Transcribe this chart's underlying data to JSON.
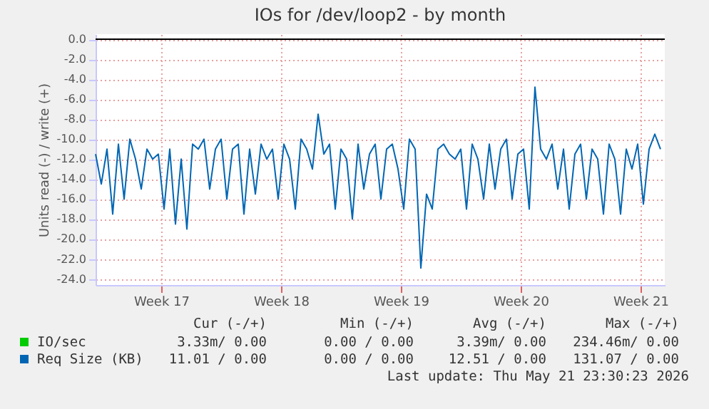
{
  "chart_data": {
    "type": "line",
    "title": "IOs for /dev/loop2 - by month",
    "ylabel": "Units read (-) / write (+)",
    "x": [
      "2026-04-19T16:00",
      "2026-04-20T00:00",
      "2026-04-20T08:00",
      "2026-04-20T16:00",
      "2026-04-21T00:00",
      "2026-04-21T08:00",
      "2026-04-21T16:00",
      "2026-04-22T00:00",
      "2026-04-22T08:00",
      "2026-04-22T16:00",
      "2026-04-23T00:00",
      "2026-04-23T08:00",
      "2026-04-23T16:00",
      "2026-04-24T00:00",
      "2026-04-24T08:00",
      "2026-04-24T16:00",
      "2026-04-25T00:00",
      "2026-04-25T08:00",
      "2026-04-25T16:00",
      "2026-04-26T00:00",
      "2026-04-26T08:00",
      "2026-04-26T16:00",
      "2026-04-27T00:00",
      "2026-04-27T08:00",
      "2026-04-27T16:00",
      "2026-04-28T00:00",
      "2026-04-28T08:00",
      "2026-04-28T16:00",
      "2026-04-29T00:00",
      "2026-04-29T08:00",
      "2026-04-29T16:00",
      "2026-04-30T00:00",
      "2026-04-30T08:00",
      "2026-04-30T16:00",
      "2026-05-01T00:00",
      "2026-05-01T08:00",
      "2026-05-01T16:00",
      "2026-05-02T00:00",
      "2026-05-02T08:00",
      "2026-05-02T16:00",
      "2026-05-03T00:00",
      "2026-05-03T08:00",
      "2026-05-03T16:00",
      "2026-05-04T00:00",
      "2026-05-04T08:00",
      "2026-05-04T16:00",
      "2026-05-05T00:00",
      "2026-05-05T08:00",
      "2026-05-05T16:00",
      "2026-05-06T00:00",
      "2026-05-06T08:00",
      "2026-05-06T16:00",
      "2026-05-07T00:00",
      "2026-05-07T08:00",
      "2026-05-07T16:00",
      "2026-05-08T00:00",
      "2026-05-08T08:00",
      "2026-05-08T16:00",
      "2026-05-09T00:00",
      "2026-05-09T08:00",
      "2026-05-09T16:00",
      "2026-05-10T00:00",
      "2026-05-10T08:00",
      "2026-05-10T16:00",
      "2026-05-11T00:00",
      "2026-05-11T08:00",
      "2026-05-11T16:00",
      "2026-05-12T00:00",
      "2026-05-12T08:00",
      "2026-05-12T16:00",
      "2026-05-13T00:00",
      "2026-05-13T08:00",
      "2026-05-13T16:00",
      "2026-05-14T00:00",
      "2026-05-14T08:00",
      "2026-05-14T16:00",
      "2026-05-15T00:00",
      "2026-05-15T08:00",
      "2026-05-15T16:00",
      "2026-05-16T00:00",
      "2026-05-16T08:00",
      "2026-05-16T16:00",
      "2026-05-17T00:00",
      "2026-05-17T08:00",
      "2026-05-17T16:00",
      "2026-05-18T00:00",
      "2026-05-18T08:00",
      "2026-05-18T16:00",
      "2026-05-19T00:00",
      "2026-05-19T08:00",
      "2026-05-19T16:00",
      "2026-05-20T00:00",
      "2026-05-20T08:00",
      "2026-05-20T16:00",
      "2026-05-21T00:00",
      "2026-05-21T08:00",
      "2026-05-21T16:00",
      "2026-05-22T00:00",
      "2026-05-22T08:00",
      "2026-05-22T16:00"
    ],
    "series": [
      {
        "name": "IO/sec",
        "color": "#00cc00",
        "values": [
          null,
          null,
          null,
          null,
          null,
          null,
          null,
          null,
          null,
          null,
          null,
          null,
          null,
          null,
          null,
          null,
          null,
          null,
          null,
          null,
          null,
          null,
          null,
          null,
          null,
          null,
          null,
          null,
          null,
          null,
          null,
          null,
          null,
          null,
          null,
          null,
          null,
          null,
          null,
          null,
          null,
          null,
          null,
          null,
          null,
          null,
          null,
          null,
          null,
          null,
          null,
          null,
          null,
          null,
          null,
          null,
          null,
          null,
          null,
          null,
          null,
          null,
          null,
          null,
          null,
          null,
          null,
          null,
          null,
          null,
          null,
          null,
          null,
          null,
          null,
          null,
          null,
          null,
          null,
          null,
          null,
          null,
          null,
          null,
          null,
          null,
          null,
          null,
          null,
          null,
          null,
          null,
          null,
          null,
          null,
          null,
          null,
          null,
          null,
          null
        ]
      },
      {
        "name": "Req Size (KB)",
        "color": "#0066b3",
        "values": [
          -11.5,
          -14.5,
          -11,
          -17.5,
          -10.5,
          -16,
          -10,
          -12,
          -15,
          -11,
          -12,
          -11.5,
          -17,
          -11,
          -18.5,
          -12,
          -19,
          -10.5,
          -11,
          -10,
          -15,
          -11,
          -10,
          -16,
          -11,
          -10.5,
          -17.5,
          -11,
          -15.5,
          -10.5,
          -12,
          -11,
          -16,
          -10.5,
          -12,
          -17,
          -10,
          -11,
          -13,
          -7.5,
          -11.5,
          -10.5,
          -17,
          -11,
          -12,
          -18,
          -10.5,
          -15,
          -11.5,
          -10.5,
          -16,
          -11,
          -10.5,
          -13,
          -17,
          -10,
          -11,
          -22.9,
          -15.5,
          -17,
          -11,
          -10.5,
          -11.5,
          -12,
          -11,
          -17,
          -10.5,
          -12,
          -16,
          -10.5,
          -15,
          -11,
          -10,
          -16,
          -11.5,
          -11,
          -17,
          -4.8,
          -11,
          -12,
          -10.5,
          -15,
          -11,
          -17,
          -11.5,
          -10.5,
          -16,
          -11,
          -12,
          -17.5,
          -10.5,
          -12,
          -17.5,
          -11,
          -13,
          -10.5,
          -16.5,
          -11,
          -9.5,
          -11
        ]
      }
    ],
    "xlim": [
      "2026-04-19T16:00",
      "2026-05-22T22:00"
    ],
    "xticks": [
      {
        "value": "2026-04-23T12:00",
        "label": "Week 17"
      },
      {
        "value": "2026-04-30T12:00",
        "label": "Week 18"
      },
      {
        "value": "2026-05-07T12:00",
        "label": "Week 19"
      },
      {
        "value": "2026-05-14T12:00",
        "label": "Week 20"
      },
      {
        "value": "2026-05-21T12:00",
        "label": "Week 21"
      }
    ],
    "ylim": [
      -24.6,
      0.5
    ],
    "yticks": [
      {
        "value": -24,
        "label": "-24.0"
      },
      {
        "value": -22,
        "label": "-22.0"
      },
      {
        "value": -20,
        "label": "-20.0"
      },
      {
        "value": -18,
        "label": "-18.0"
      },
      {
        "value": -16,
        "label": "-16.0"
      },
      {
        "value": -14,
        "label": "-14.0"
      },
      {
        "value": -12,
        "label": "-12.0"
      },
      {
        "value": -10,
        "label": "-10.0"
      },
      {
        "value": -8,
        "label": "-8.0"
      },
      {
        "value": -6,
        "label": "-6.0"
      },
      {
        "value": -4,
        "label": "-4.0"
      },
      {
        "value": -2,
        "label": "-2.0"
      },
      {
        "value": 0,
        "label": "0.0"
      }
    ],
    "ref_lines": [
      {
        "axis": "y",
        "value": 0,
        "color": "#000000"
      }
    ],
    "grid": true,
    "legend": "bottom",
    "marker": "none",
    "line_style": "solid",
    "annotations": [
      "Cur (-/+)",
      "Min (-/+)",
      "Avg (-/+)",
      "Max (-/+)",
      "3.33m/ 0.00",
      "0.00 / 0.00",
      "3.39m/ 0.00",
      "234.46m/ 0.00",
      "11.01 / 0.00",
      "0.00 / 0.00",
      "12.51 / 0.00",
      "131.07 / 0.00",
      "Last update: Thu May 21 23:30:23 2026"
    ]
  }
}
